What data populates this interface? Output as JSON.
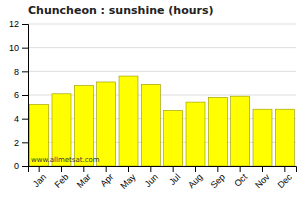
{
  "chart_data": {
    "type": "bar",
    "title": "Chuncheon : sunshine (hours)",
    "categories": [
      "Jan",
      "Feb",
      "Mar",
      "Apr",
      "May",
      "Jun",
      "Jul",
      "Aug",
      "Sep",
      "Oct",
      "Nov",
      "Dec"
    ],
    "values": [
      5.2,
      6.1,
      6.8,
      7.1,
      7.6,
      6.9,
      4.7,
      5.4,
      5.8,
      5.9,
      4.8,
      4.8
    ],
    "color": "#ffff00",
    "ylim": [
      0,
      12
    ],
    "yticks": [
      0,
      2,
      4,
      6,
      8,
      10,
      12
    ],
    "grid": true,
    "annotation": "www.allmetsat.com"
  }
}
